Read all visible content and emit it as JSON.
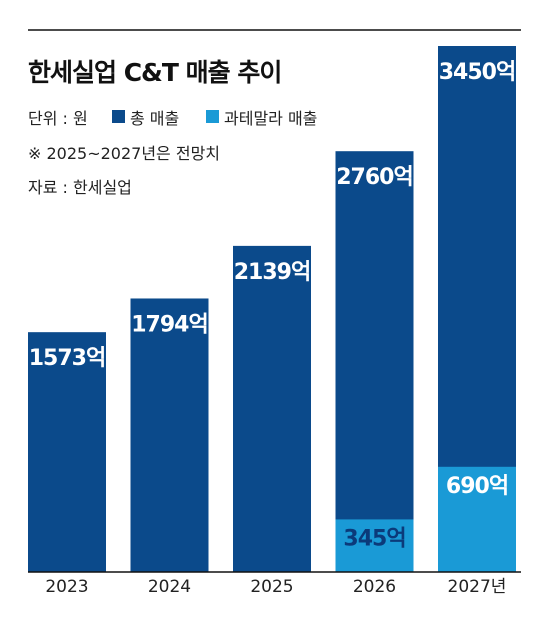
{
  "title": "한세실업 C&T 매출 추이",
  "unit_text": "단위 : 원",
  "legend": [
    {
      "label": "총 매출",
      "color": "#0b4a8b"
    },
    {
      "label": "과테말라 매출",
      "color": "#1a9ad6"
    }
  ],
  "note": "※ 2025~2027년은 전망치",
  "source": "자료 : 한세실업",
  "chart_data": {
    "type": "bar",
    "title": "한세실업 C&T 매출 추이",
    "categories": [
      "2023",
      "2024",
      "2025",
      "2026",
      "2027년"
    ],
    "series": [
      {
        "name": "총 매출",
        "values": [
          1573,
          1794,
          2139,
          2760,
          3450
        ],
        "labels": [
          "1573억",
          "1794억",
          "2139억",
          "2760억",
          "3450억"
        ],
        "color": "#0b4a8b"
      },
      {
        "name": "과테말라 매출",
        "values": [
          null,
          null,
          null,
          345,
          690
        ],
        "labels": [
          "",
          "",
          "",
          "345억",
          "690억"
        ],
        "color": "#1a9ad6"
      }
    ],
    "ylim": [
      0,
      3450
    ],
    "grid": false,
    "legend": "top-left"
  }
}
